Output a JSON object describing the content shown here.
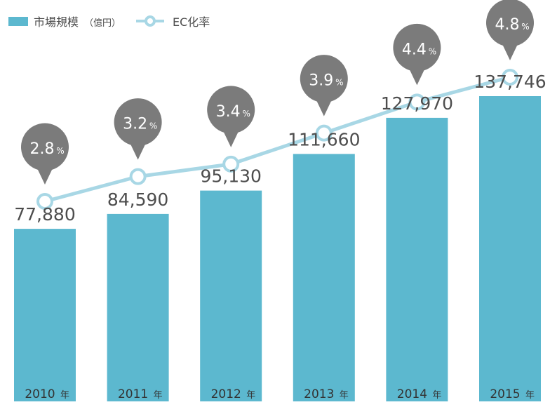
{
  "legend": {
    "bar_label": "市場規模",
    "bar_unit": "（億円）",
    "line_label": "EC化率"
  },
  "chart_data": {
    "type": "bar",
    "categories": [
      "2010",
      "2011",
      "2012",
      "2013",
      "2014",
      "2015"
    ],
    "category_suffix": "年",
    "series": [
      {
        "name": "市場規模",
        "type": "bar",
        "values": [
          77880,
          84590,
          95130,
          111660,
          127970,
          137746
        ],
        "labels": [
          "77,880",
          "84,590",
          "95,130",
          "111,660",
          "127,970",
          "137,746"
        ],
        "color": "#5cb8cf"
      },
      {
        "name": "EC化率",
        "type": "line",
        "values": [
          2.8,
          3.2,
          3.4,
          3.9,
          4.4,
          4.8
        ],
        "labels": [
          "2.8",
          "3.2",
          "3.4",
          "3.9",
          "4.4",
          "4.8"
        ],
        "unit": "%",
        "color": "#a8d7e5"
      }
    ],
    "xlabel": "",
    "ylabel": "",
    "ylim": [
      0,
      160000
    ],
    "y2lim": [
      0,
      6
    ],
    "grid": false,
    "legend_position": "top-left",
    "bubble_color": "#7b7b7b",
    "label_color": "#4d4d4d"
  }
}
